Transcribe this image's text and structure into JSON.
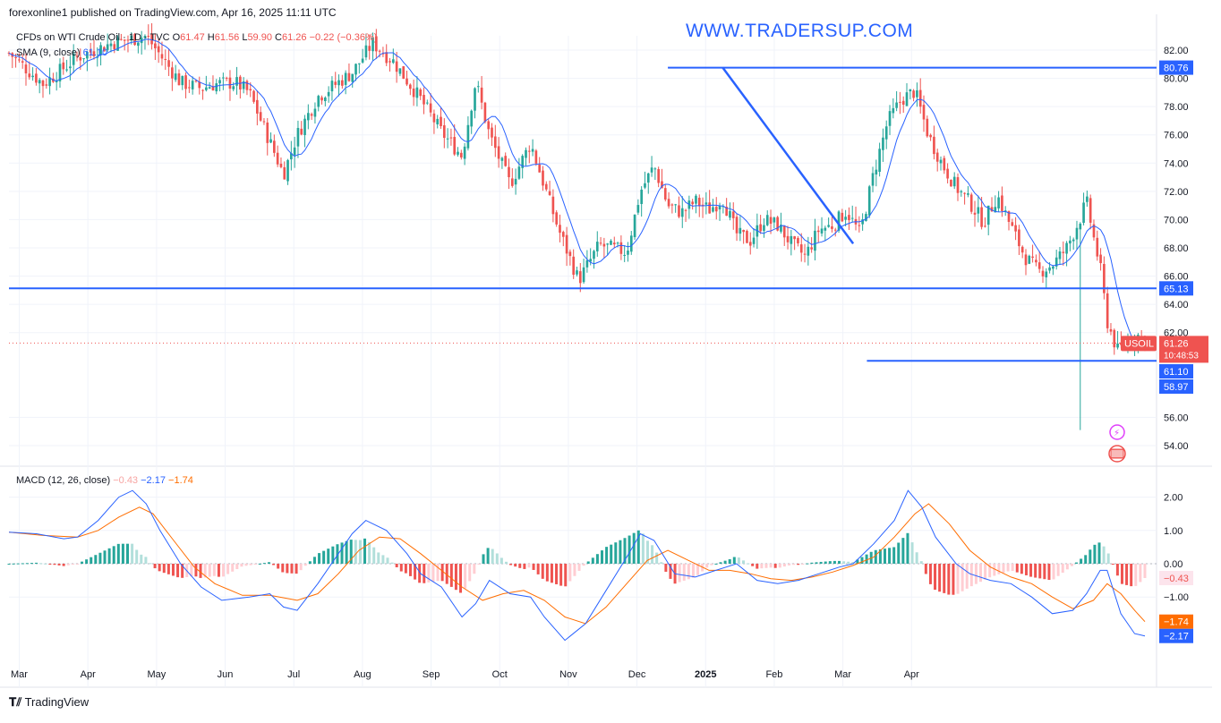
{
  "header": {
    "publisher": "forexonline1 published on TradingView.com, Apr 16, 2025 11:11 UTC",
    "brand": "WWW.TRADERSUP.COM",
    "symbol_title": "CFDs on WTI Crude Oil · 1D · TVC",
    "ohlc": {
      "o_label": "O",
      "o": "61.47",
      "h_label": "H",
      "h": "61.56",
      "l_label": "L",
      "l": "59.90",
      "c_label": "C",
      "c": "61.26",
      "chg": "−0.22 (−0.36%)"
    },
    "sma_label": "SMA (9, close)",
    "sma_value": "61.10",
    "macd_label": "MACD (12, 26, close)",
    "macd_values": {
      "hist": "−0.43",
      "macd": "−2.17",
      "signal": "−1.74"
    }
  },
  "footer": {
    "logo_text": "TradingView"
  },
  "colors": {
    "up": "#26a69a",
    "down": "#ef5350",
    "sma": "#2962ff",
    "line": "#2962ff",
    "macd": "#2962ff",
    "signal": "#ff6d00",
    "hist_up_strong": "#26a69a",
    "hist_up_weak": "#b2dfdb",
    "hist_down_strong": "#ef5350",
    "hist_down_weak": "#ffcdd2",
    "grid": "#f0f3fa"
  },
  "chart_data": [
    {
      "type": "candlestick",
      "title": "CFDs on WTI Crude Oil · 1D · TVC",
      "y_ticks": [
        "82.00",
        "80.00",
        "78.00",
        "76.00",
        "74.00",
        "72.00",
        "70.00",
        "68.00",
        "66.00",
        "64.00",
        "62.00",
        "56.00",
        "54.00"
      ],
      "ylim": [
        53,
        83
      ],
      "x_ticks": [
        "Mar",
        "Apr",
        "May",
        "Jun",
        "Jul",
        "Aug",
        "Sep",
        "Oct",
        "Nov",
        "Dec",
        "2025",
        "Feb",
        "Mar",
        "Apr"
      ],
      "price_markers": [
        {
          "label": "80.76"
        },
        {
          "label": "65.13"
        },
        {
          "label": "USOIL",
          "value": "61.26",
          "sub": "10:48:53"
        },
        {
          "label": "61.10"
        },
        {
          "label": "58.97"
        }
      ],
      "annotations": [
        {
          "kind": "horizontal_line",
          "from_month": 11.6,
          "to_month": 15.95,
          "y": 80.76
        },
        {
          "kind": "horizontal_line",
          "from_month": 2.0,
          "to_month": 15.95,
          "y": 65.13
        },
        {
          "kind": "horizontal_line",
          "from_month": 14.5,
          "to_month": 15.95,
          "y": 60.0
        },
        {
          "kind": "trend_line",
          "x1_month": 12.4,
          "y1": 80.76,
          "x2_month": 14.3,
          "y2": 68.3
        }
      ],
      "price_path": [
        [
          2.0,
          81.8
        ],
        [
          2.5,
          79.6
        ],
        [
          3.0,
          81.5
        ],
        [
          3.5,
          82.5
        ],
        [
          4.0,
          83.0
        ],
        [
          4.3,
          81.0
        ],
        [
          4.5,
          79.7
        ],
        [
          4.8,
          79.3
        ],
        [
          5.0,
          79.6
        ],
        [
          5.3,
          79.7
        ],
        [
          5.5,
          79.0
        ],
        [
          6.0,
          73.2
        ],
        [
          6.2,
          76.0
        ],
        [
          6.5,
          78.7
        ],
        [
          7.0,
          80.4
        ],
        [
          7.3,
          82.5
        ],
        [
          7.6,
          81.2
        ],
        [
          8.0,
          78.5
        ],
        [
          8.3,
          76.2
        ],
        [
          8.6,
          74.5
        ],
        [
          8.8,
          79.8
        ],
        [
          9.0,
          76.0
        ],
        [
          9.3,
          72.5
        ],
        [
          9.6,
          75.4
        ],
        [
          10.0,
          69.4
        ],
        [
          10.3,
          65.7
        ],
        [
          10.6,
          68.2
        ],
        [
          11.0,
          67.7
        ],
        [
          11.2,
          72.0
        ],
        [
          11.4,
          73.8
        ],
        [
          11.6,
          71.0
        ],
        [
          11.8,
          70.5
        ],
        [
          12.0,
          71.3
        ],
        [
          12.2,
          70.7
        ],
        [
          12.4,
          71.5
        ],
        [
          12.6,
          69.0
        ],
        [
          12.8,
          68.5
        ],
        [
          13.0,
          70.0
        ],
        [
          13.2,
          69.6
        ],
        [
          13.4,
          68.3
        ],
        [
          13.6,
          67.4
        ],
        [
          13.8,
          69.3
        ],
        [
          14.0,
          69.6
        ],
        [
          14.2,
          70.6
        ],
        [
          14.4,
          69.0
        ],
        [
          14.6,
          73.3
        ],
        [
          14.8,
          76.9
        ],
        [
          15.0,
          78.5
        ],
        [
          15.2,
          79.1
        ],
        [
          15.4,
          75.9
        ],
        [
          15.6,
          73.9
        ],
        [
          15.8,
          72.3
        ],
        [
          16.0,
          71.2
        ],
        [
          16.2,
          69.8
        ],
        [
          16.4,
          71.7
        ],
        [
          16.6,
          69.5
        ],
        [
          16.8,
          67.4
        ],
        [
          17.0,
          66.3
        ],
        [
          17.2,
          66.8
        ],
        [
          17.4,
          67.9
        ],
        [
          17.6,
          70.0
        ],
        [
          17.7,
          71.3
        ],
        [
          17.8,
          68.8
        ],
        [
          17.9,
          66.6
        ],
        [
          18.0,
          62.8
        ],
        [
          18.15,
          60.7
        ],
        [
          18.3,
          61.3
        ],
        [
          18.45,
          61.8
        ],
        [
          18.55,
          61.26
        ]
      ],
      "sma": {
        "name": "SMA (9, close)",
        "last": 61.1
      }
    },
    {
      "type": "macd",
      "title": "MACD (12, 26, close)",
      "y_ticks": [
        "2.00",
        "1.00",
        "0.00",
        "−1.00"
      ],
      "ylim": [
        -2.4,
        2.4
      ],
      "markers": [
        {
          "label": "−0.43",
          "series": "histogram"
        },
        {
          "label": "−1.74",
          "series": "signal"
        },
        {
          "label": "−2.17",
          "series": "macd"
        }
      ],
      "macd_path": [
        [
          2.0,
          0.95
        ],
        [
          2.4,
          0.9
        ],
        [
          2.8,
          0.75
        ],
        [
          3.0,
          0.8
        ],
        [
          3.3,
          1.3
        ],
        [
          3.6,
          2.0
        ],
        [
          3.8,
          2.2
        ],
        [
          4.0,
          1.8
        ],
        [
          4.2,
          1.0
        ],
        [
          4.5,
          0.0
        ],
        [
          4.8,
          -0.7
        ],
        [
          5.1,
          -1.1
        ],
        [
          5.5,
          -1.0
        ],
        [
          5.8,
          -0.9
        ],
        [
          6.0,
          -1.3
        ],
        [
          6.2,
          -1.4
        ],
        [
          6.5,
          -0.6
        ],
        [
          6.8,
          0.3
        ],
        [
          7.0,
          0.9
        ],
        [
          7.2,
          1.3
        ],
        [
          7.5,
          1.0
        ],
        [
          7.8,
          0.3
        ],
        [
          8.0,
          -0.3
        ],
        [
          8.3,
          -0.7
        ],
        [
          8.6,
          -1.6
        ],
        [
          8.8,
          -1.2
        ],
        [
          9.0,
          -0.5
        ],
        [
          9.3,
          -0.9
        ],
        [
          9.6,
          -1.0
        ],
        [
          9.8,
          -1.6
        ],
        [
          10.1,
          -2.3
        ],
        [
          10.4,
          -1.8
        ],
        [
          10.7,
          -0.8
        ],
        [
          11.0,
          0.2
        ],
        [
          11.2,
          0.9
        ],
        [
          11.4,
          0.7
        ],
        [
          11.7,
          -0.3
        ],
        [
          12.0,
          -0.4
        ],
        [
          12.3,
          -0.2
        ],
        [
          12.6,
          0.0
        ],
        [
          12.9,
          -0.5
        ],
        [
          13.2,
          -0.6
        ],
        [
          13.5,
          -0.5
        ],
        [
          13.8,
          -0.3
        ],
        [
          14.1,
          -0.1
        ],
        [
          14.3,
          0.0
        ],
        [
          14.6,
          0.6
        ],
        [
          14.9,
          1.3
        ],
        [
          15.1,
          2.2
        ],
        [
          15.3,
          1.7
        ],
        [
          15.5,
          0.8
        ],
        [
          15.8,
          0.0
        ],
        [
          16.0,
          -0.3
        ],
        [
          16.3,
          -0.5
        ],
        [
          16.6,
          -0.6
        ],
        [
          16.9,
          -1.0
        ],
        [
          17.2,
          -1.5
        ],
        [
          17.5,
          -1.4
        ],
        [
          17.7,
          -0.9
        ],
        [
          17.9,
          -0.2
        ],
        [
          18.0,
          -0.2
        ],
        [
          18.2,
          -1.5
        ],
        [
          18.4,
          -2.1
        ],
        [
          18.55,
          -2.17
        ]
      ],
      "signal_path": [
        [
          2.0,
          0.95
        ],
        [
          2.5,
          0.85
        ],
        [
          3.0,
          0.8
        ],
        [
          3.3,
          1.0
        ],
        [
          3.6,
          1.4
        ],
        [
          3.9,
          1.7
        ],
        [
          4.1,
          1.5
        ],
        [
          4.4,
          0.7
        ],
        [
          4.7,
          -0.1
        ],
        [
          5.0,
          -0.6
        ],
        [
          5.4,
          -0.95
        ],
        [
          5.8,
          -0.95
        ],
        [
          6.2,
          -1.1
        ],
        [
          6.5,
          -0.9
        ],
        [
          6.8,
          -0.3
        ],
        [
          7.1,
          0.4
        ],
        [
          7.4,
          0.8
        ],
        [
          7.7,
          0.75
        ],
        [
          8.0,
          0.3
        ],
        [
          8.3,
          -0.2
        ],
        [
          8.6,
          -0.7
        ],
        [
          8.9,
          -1.1
        ],
        [
          9.2,
          -0.9
        ],
        [
          9.5,
          -0.8
        ],
        [
          9.8,
          -1.1
        ],
        [
          10.1,
          -1.6
        ],
        [
          10.4,
          -1.8
        ],
        [
          10.7,
          -1.3
        ],
        [
          11.0,
          -0.6
        ],
        [
          11.3,
          0.1
        ],
        [
          11.6,
          0.4
        ],
        [
          11.9,
          0.1
        ],
        [
          12.2,
          -0.2
        ],
        [
          12.5,
          -0.2
        ],
        [
          12.8,
          -0.3
        ],
        [
          13.1,
          -0.45
        ],
        [
          13.4,
          -0.5
        ],
        [
          13.7,
          -0.4
        ],
        [
          14.0,
          -0.25
        ],
        [
          14.3,
          -0.05
        ],
        [
          14.6,
          0.2
        ],
        [
          14.9,
          0.8
        ],
        [
          15.2,
          1.5
        ],
        [
          15.4,
          1.8
        ],
        [
          15.7,
          1.2
        ],
        [
          16.0,
          0.4
        ],
        [
          16.3,
          -0.1
        ],
        [
          16.6,
          -0.4
        ],
        [
          16.9,
          -0.6
        ],
        [
          17.2,
          -1.0
        ],
        [
          17.5,
          -1.35
        ],
        [
          17.8,
          -1.1
        ],
        [
          18.0,
          -0.6
        ],
        [
          18.2,
          -0.9
        ],
        [
          18.4,
          -1.4
        ],
        [
          18.55,
          -1.74
        ]
      ]
    }
  ]
}
